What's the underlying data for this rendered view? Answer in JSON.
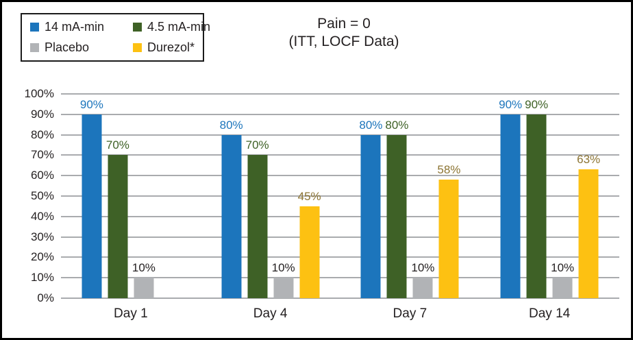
{
  "title": {
    "line1": "Pain = 0",
    "line2": "(ITT, LOCF Data)"
  },
  "colors": {
    "grid": "#a9abae",
    "text": "#231f20",
    "frame_border": "#000000",
    "legend_border": "#1a1a1a",
    "background": "#ffffff"
  },
  "chart_data": {
    "type": "bar",
    "title": "Pain = 0 (ITT, LOCF Data)",
    "xlabel": "",
    "ylabel": "",
    "ylim": [
      0,
      100
    ],
    "grid": true,
    "legend_position": "top-left",
    "yticks": [
      "0%",
      "10%",
      "20%",
      "30%",
      "40%",
      "50%",
      "60%",
      "70%",
      "80%",
      "90%",
      "100%"
    ],
    "categories": [
      "Day 1",
      "Day 4",
      "Day 7",
      "Day 14"
    ],
    "value_label_suffix": "%",
    "series": [
      {
        "name": "14 mA-min",
        "color": "#1c75bc",
        "label_color": "#1c75bc",
        "values": [
          90,
          80,
          80,
          90
        ]
      },
      {
        "name": "4.5 mA-min",
        "color": "#3e6126",
        "label_color": "#3e6126",
        "values": [
          70,
          70,
          80,
          90
        ]
      },
      {
        "name": "Placebo",
        "color": "#b1b3b6",
        "label_color": "#231f20",
        "values": [
          10,
          10,
          10,
          10
        ]
      },
      {
        "name": "Durezol*",
        "color": "#fdc112",
        "label_color": "#8c7433",
        "values": [
          null,
          45,
          58,
          63
        ]
      }
    ]
  }
}
